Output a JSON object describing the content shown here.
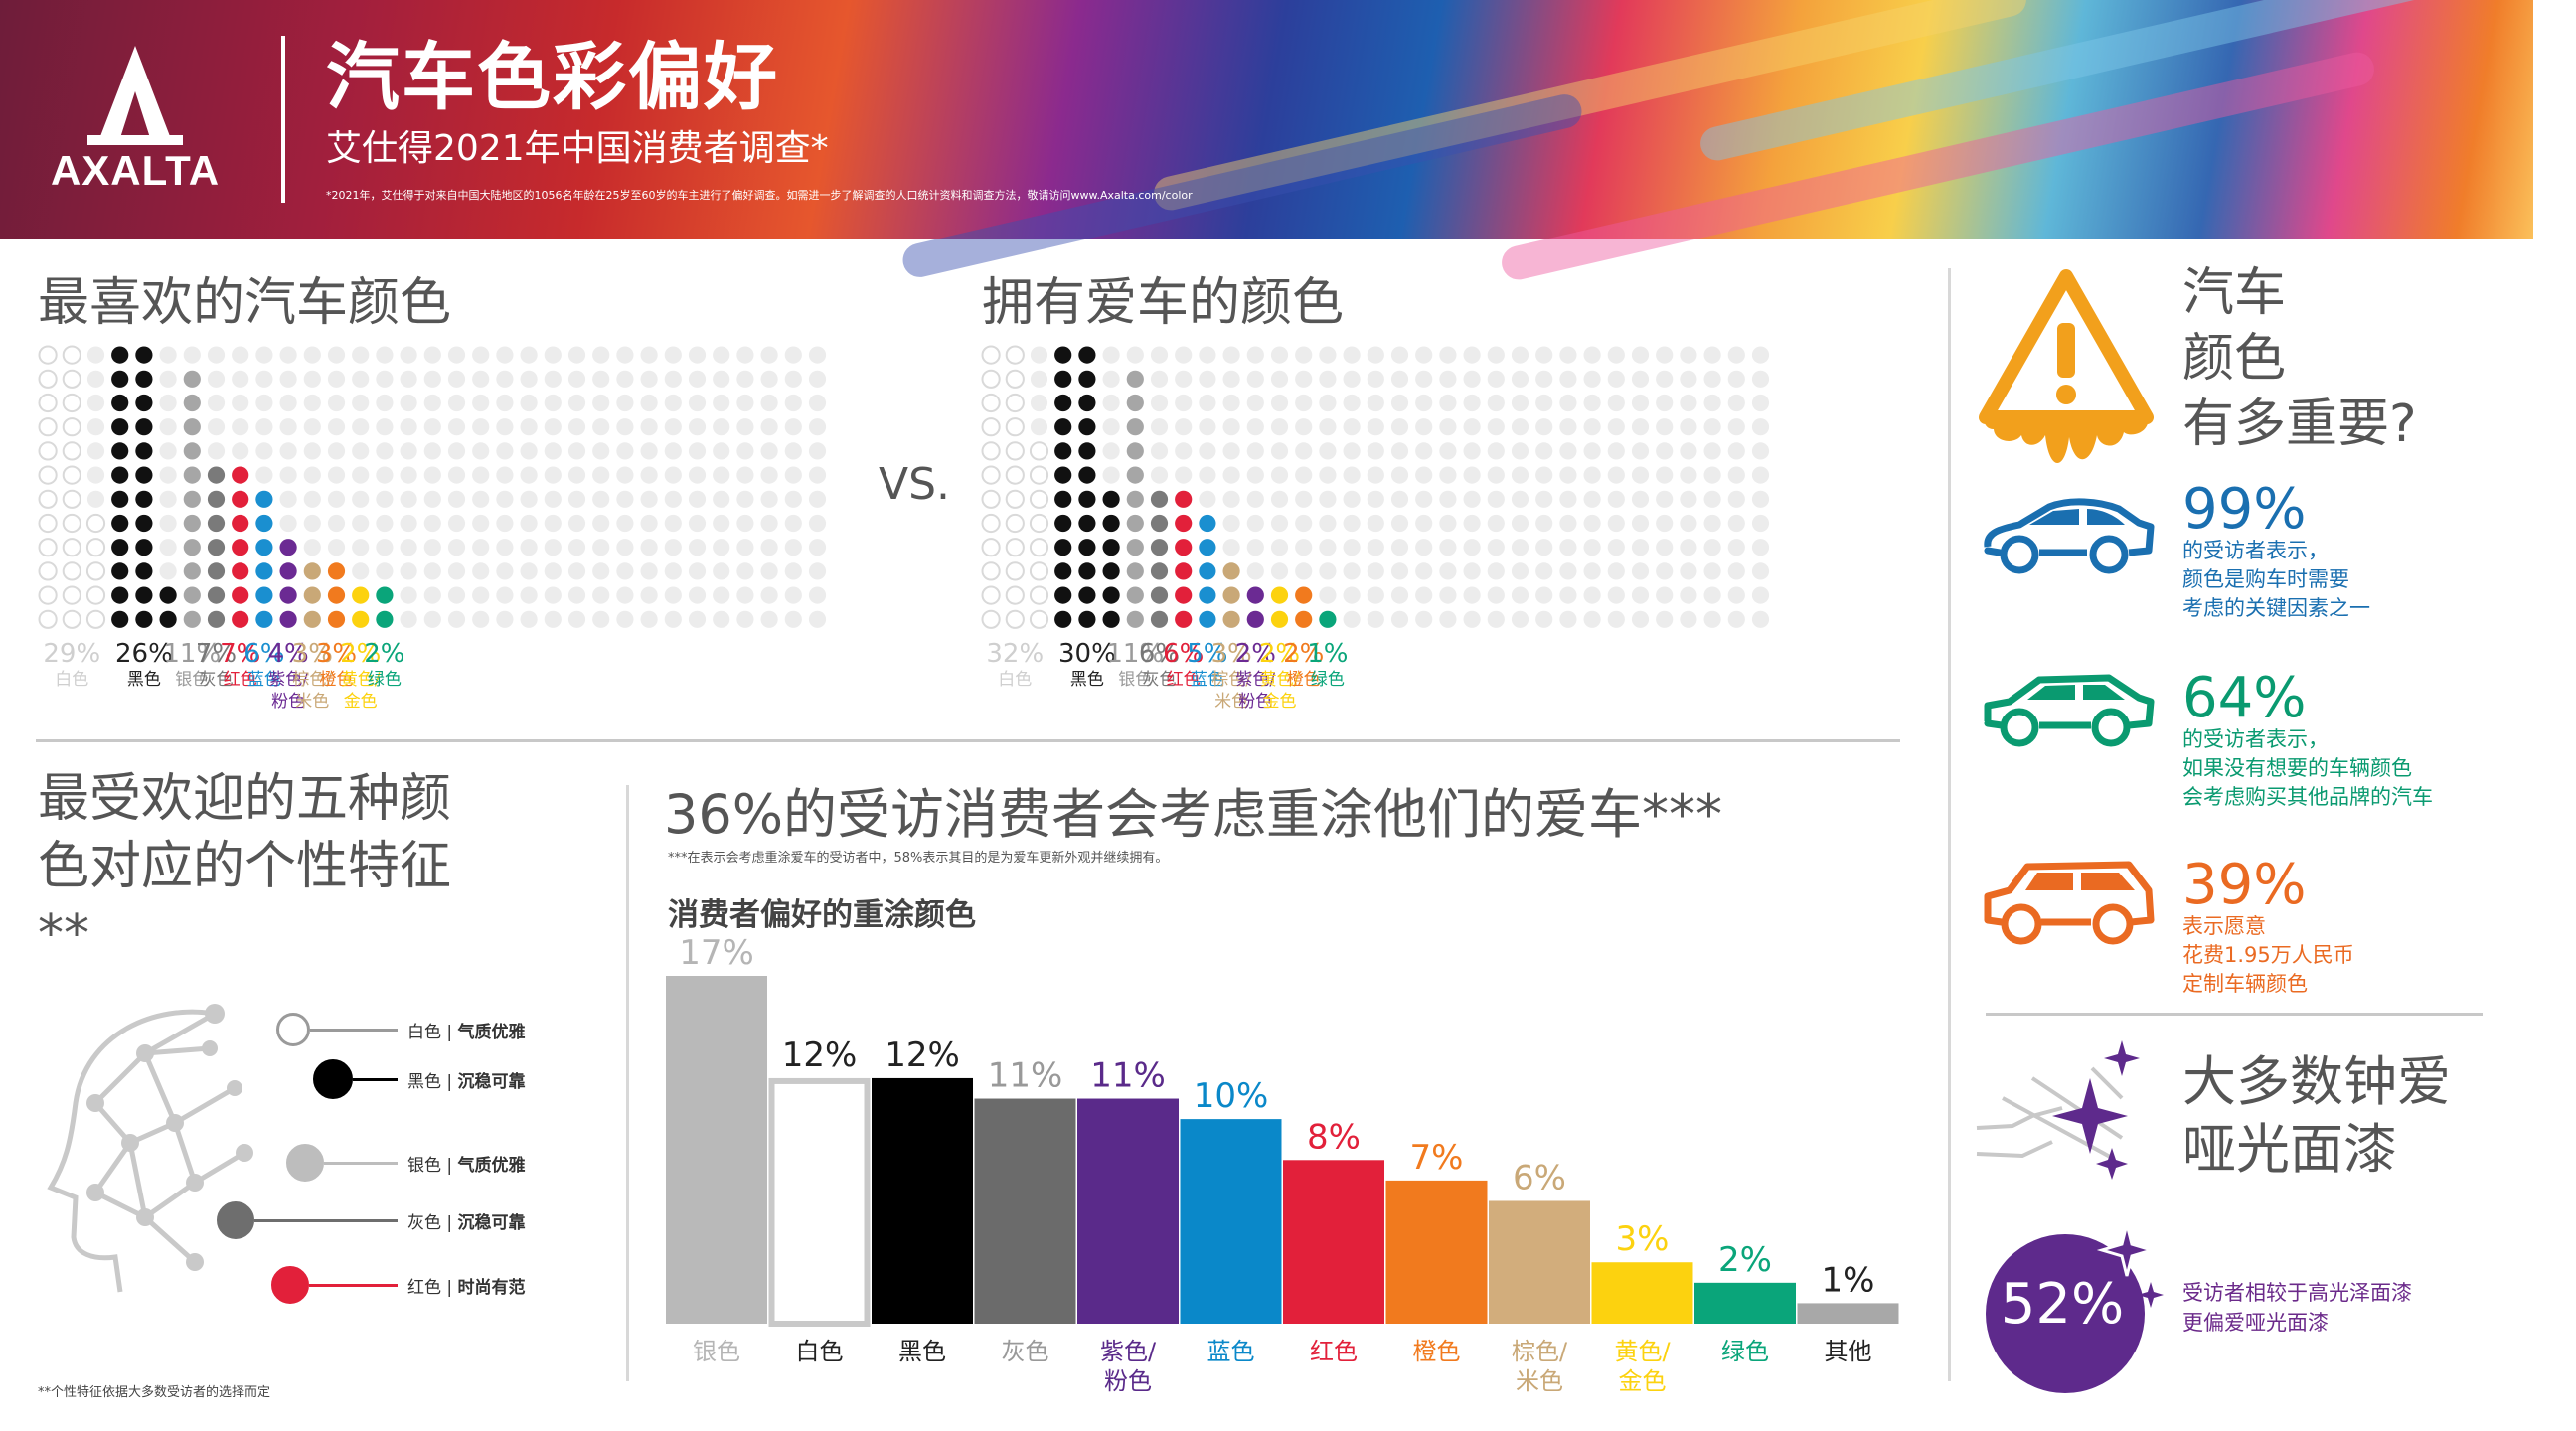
{
  "banner": {
    "logo_text": "AXALTA",
    "title": "汽车色彩偏好",
    "subtitle": "艾仕得2021年中国消费者调查*",
    "note": "*2021年，艾仕得于对来自中国大陆地区的1056名年龄在25岁至60岁的车主进行了偏好调查。如需进一步了解调查的人口统计资料和调查方法，敬请访问www.Axalta.com/color"
  },
  "favorite": {
    "title": "最喜欢的汽车颜色"
  },
  "owned": {
    "title": "拥有爱车的颜色"
  },
  "vs_text": "VS.",
  "chart_data": [
    {
      "type": "bar",
      "title": "最喜欢的汽车颜色",
      "categories": [
        "白色",
        "黑色",
        "银色",
        "灰色",
        "红色",
        "蓝色",
        "紫色/粉色",
        "棕色/米色",
        "橙色",
        "黄色/金色",
        "绿色"
      ],
      "values": [
        29,
        26,
        11,
        7,
        7,
        6,
        4,
        3,
        3,
        2,
        2
      ],
      "labels": [
        "29%",
        "26%",
        "11%",
        "7%",
        "7%",
        "6%",
        "4%",
        "3%",
        "3%",
        "2%",
        "2%"
      ],
      "name_lines": [
        [
          "白色"
        ],
        [
          "黑色"
        ],
        [
          "银色"
        ],
        [
          "灰色"
        ],
        [
          "红色"
        ],
        [
          "蓝色"
        ],
        [
          "紫色/",
          "粉色"
        ],
        [
          "棕色/",
          "米色"
        ],
        [
          "橙色"
        ],
        [
          "黄色/",
          "金色"
        ],
        [
          "绿色"
        ]
      ],
      "colors": [
        "#e3e3e3",
        "#111111",
        "#a6a6a6",
        "#7a7a7a",
        "#e2203a",
        "#1a8fd0",
        "#6b2a93",
        "#c9a877",
        "#f17a1e",
        "#fcd20f",
        "#0aa57a"
      ],
      "text_colors": [
        "#cfcfcf",
        "#222222",
        "#9a9a9a",
        "#777777",
        "#e2203a",
        "#1a8fd0",
        "#6b2a93",
        "#c9a877",
        "#f17a1e",
        "#fcd20f",
        "#0aa57a"
      ]
    },
    {
      "type": "bar",
      "title": "拥有爱车的颜色",
      "categories": [
        "白色",
        "黑色",
        "银色",
        "灰色",
        "红色",
        "蓝色",
        "棕色/米色",
        "紫色/粉色",
        "黄色/金色",
        "橙色",
        "绿色"
      ],
      "values": [
        32,
        30,
        11,
        6,
        6,
        5,
        3,
        2,
        2,
        2,
        1
      ],
      "labels": [
        "32%",
        "30%",
        "11%",
        "6%",
        "6%",
        "5%",
        "3%",
        "2%",
        "2%",
        "2%",
        "1%"
      ],
      "name_lines": [
        [
          "白色"
        ],
        [
          "黑色"
        ],
        [
          "银色"
        ],
        [
          "灰色"
        ],
        [
          "红色"
        ],
        [
          "蓝色"
        ],
        [
          "棕色/",
          "米色"
        ],
        [
          "紫色/",
          "粉色"
        ],
        [
          "黄色/",
          "金色"
        ],
        [
          "橙色"
        ],
        [
          "绿色"
        ]
      ],
      "colors": [
        "#e3e3e3",
        "#111111",
        "#a6a6a6",
        "#7a7a7a",
        "#e2203a",
        "#1a8fd0",
        "#c9a877",
        "#6b2a93",
        "#fcd20f",
        "#f17a1e",
        "#0aa57a"
      ],
      "text_colors": [
        "#cfcfcf",
        "#222222",
        "#9a9a9a",
        "#777777",
        "#e2203a",
        "#1a8fd0",
        "#c9a877",
        "#6b2a93",
        "#fcd20f",
        "#f17a1e",
        "#0aa57a"
      ]
    },
    {
      "type": "bar",
      "title": "消费者偏好的重涂颜色",
      "categories": [
        "银色",
        "白色",
        "黑色",
        "灰色",
        "紫色/粉色",
        "蓝色",
        "红色",
        "橙色",
        "棕色/米色",
        "黄色/金色",
        "绿色",
        "其他"
      ],
      "values": [
        17,
        12,
        12,
        11,
        11,
        10,
        8,
        7,
        6,
        3,
        2,
        1
      ],
      "labels": [
        "17%",
        "12%",
        "12%",
        "11%",
        "11%",
        "10%",
        "8%",
        "7%",
        "6%",
        "3%",
        "2%",
        "1%"
      ],
      "name_lines": [
        [
          "银色"
        ],
        [
          "白色"
        ],
        [
          "黑色"
        ],
        [
          "灰色"
        ],
        [
          "紫色/",
          "粉色"
        ],
        [
          "蓝色"
        ],
        [
          "红色"
        ],
        [
          "橙色"
        ],
        [
          "棕色/",
          "米色"
        ],
        [
          "黄色/",
          "金色"
        ],
        [
          "绿色"
        ],
        [
          "其他"
        ]
      ],
      "colors": [
        "#b9b9b9",
        "#ffffff",
        "#000000",
        "#6b6b6b",
        "#5a2a8a",
        "#0a88c9",
        "#e2203a",
        "#f17a1e",
        "#d2ad7c",
        "#fcd20f",
        "#0aa57a",
        "#a8a8a8"
      ],
      "text_colors": [
        "#b5b5b5",
        "#222222",
        "#222222",
        "#999999",
        "#5a2a8a",
        "#0a88c9",
        "#e2203a",
        "#f17a1e",
        "#c9a877",
        "#fcd20f",
        "#0aa57a",
        "#222222"
      ],
      "ylim": [
        0,
        17
      ]
    }
  ],
  "personality": {
    "title": "最受欢迎的五种颜色对应的个性特征**",
    "traits": [
      {
        "color_name": "白色",
        "trait": "气质优雅",
        "fill": "#ffffff",
        "stroke": "#9a9a9a"
      },
      {
        "color_name": "黑色",
        "trait": "沉稳可靠",
        "fill": "#000000",
        "stroke": "#000000"
      },
      {
        "color_name": "银色",
        "trait": "气质优雅",
        "fill": "#bdbdbd",
        "stroke": "#bdbdbd"
      },
      {
        "color_name": "灰色",
        "trait": "沉稳可靠",
        "fill": "#6e6e6e",
        "stroke": "#6e6e6e"
      },
      {
        "color_name": "红色",
        "trait": "时尚有范",
        "fill": "#e2203a",
        "stroke": "#e2203a"
      }
    ],
    "separator": "|",
    "footnote": "**个性特征依据大多数受访者的选择而定"
  },
  "repaint": {
    "title": "36%的受访消费者会考虑重涂他们的爱车***",
    "note": "***在表示会考虑重涂爱车的受访者中，58%表示其目的是为爱车更新外观并继续拥有。",
    "subtitle": "消费者偏好的重涂颜色"
  },
  "importance": {
    "title_lines": [
      "汽车",
      "颜色",
      "有多重要?"
    ],
    "stats": [
      {
        "pct": "99%",
        "lines": [
          "的受访者表示，",
          "颜色是购车时需要",
          "考虑的关键因素之一"
        ],
        "color": "#1a6fb0"
      },
      {
        "pct": "64%",
        "lines": [
          "的受访者表示，",
          "如果没有想要的车辆颜色",
          "会考虑购买其他品牌的汽车"
        ],
        "color": "#0a9a70"
      },
      {
        "pct": "39%",
        "lines": [
          "表示愿意",
          "花费1.95万人民币",
          "定制车辆颜色"
        ],
        "color": "#ea6a22"
      }
    ]
  },
  "matte": {
    "title_lines": [
      "大多数钟爱",
      "哑光面漆"
    ],
    "pct": "52%",
    "desc_lines": [
      "受访者相较于高光泽面漆",
      "更偏爱哑光面漆"
    ]
  },
  "colors": {
    "purple": "#5e2a8c",
    "orange_warning": "#f2a01c",
    "divider": "#c8c8c8"
  }
}
